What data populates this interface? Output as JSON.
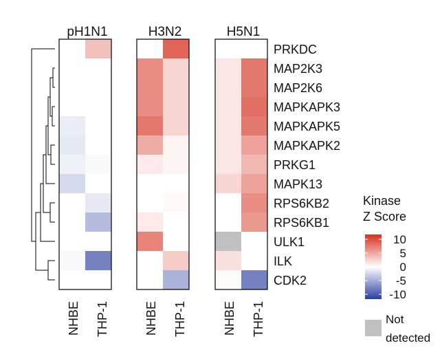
{
  "chart_data": {
    "type": "heatmap",
    "panels": [
      "pH1N1",
      "H3N2",
      "H5N1"
    ],
    "columns": [
      "NHBE",
      "THP-1"
    ],
    "rows": [
      "PRKDC",
      "MAP2K3",
      "MAP2K6",
      "MAPKAPK3",
      "MAPKAPK5",
      "MAPKAPK2",
      "PRKG1",
      "MAPK13",
      "RPS6KB2",
      "RPS6KB1",
      "ULK1",
      "ILK",
      "CDK2"
    ],
    "values": {
      "pH1N1": [
        [
          0,
          3
        ],
        [
          0,
          0
        ],
        [
          0,
          0
        ],
        [
          0,
          0
        ],
        [
          -1,
          0
        ],
        [
          -1.2,
          0
        ],
        [
          -0.8,
          -0.3
        ],
        [
          -2,
          0
        ],
        [
          0,
          -1.2
        ],
        [
          0,
          -3.5
        ],
        [
          0,
          0
        ],
        [
          -0.3,
          -6.5
        ],
        [
          0,
          0
        ]
      ],
      "H3N2": [
        [
          0,
          7.5
        ],
        [
          5.5,
          2
        ],
        [
          5.5,
          2
        ],
        [
          5.5,
          2
        ],
        [
          6.5,
          2
        ],
        [
          4,
          0.5
        ],
        [
          1,
          0.5
        ],
        [
          0,
          0
        ],
        [
          0,
          0.3
        ],
        [
          1,
          0
        ],
        [
          6,
          0
        ],
        [
          0,
          2.5
        ],
        [
          0,
          -4
        ]
      ],
      "H5N1": [
        [
          0,
          0
        ],
        [
          1.2,
          6.5
        ],
        [
          1.2,
          6.5
        ],
        [
          1.2,
          7
        ],
        [
          1.2,
          6.5
        ],
        [
          1.2,
          4.5
        ],
        [
          1.2,
          3.5
        ],
        [
          2,
          4.5
        ],
        [
          0,
          5.5
        ],
        [
          0,
          5
        ],
        [
          null,
          0
        ],
        [
          1.5,
          0
        ],
        [
          0.2,
          -6.5
        ]
      ]
    },
    "legend": {
      "title": [
        "Kinase",
        "Z Score"
      ],
      "ticks": [
        "10",
        "5",
        "0",
        "-5",
        "-10"
      ],
      "range": [
        -10,
        10
      ],
      "not_detected_label": [
        "Not",
        "detected"
      ]
    },
    "colors": {
      "positive": "#d7301f",
      "zero": "#ffffff",
      "negative": "#2b3fa0",
      "not_detected": "#c0c0c0"
    }
  }
}
